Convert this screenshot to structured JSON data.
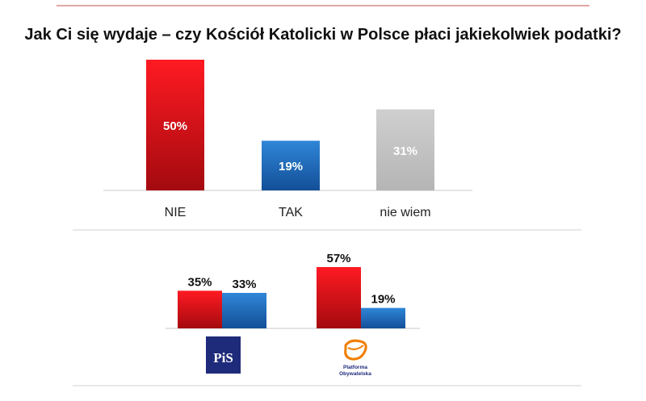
{
  "chart_data": [
    {
      "type": "bar",
      "title": "Jak Ci się wydaje – czy Kościół Katolicki w Polsce płaci jakiekolwiek podatki?",
      "categories": [
        "NIE",
        "TAK",
        "nie wiem"
      ],
      "values": [
        50,
        19,
        31
      ],
      "value_labels": [
        "50%",
        "19%",
        "31%"
      ],
      "colors": [
        "#e0141a",
        "#1f6bbf",
        "#bdbdbd"
      ],
      "ylim": [
        0,
        50
      ],
      "grid": false,
      "legend": "none"
    },
    {
      "type": "bar",
      "categories": [
        "PiS",
        "Platforma Obywatelska"
      ],
      "series": [
        {
          "name": "NIE",
          "color": "#e0141a",
          "values": [
            35,
            57
          ],
          "value_labels": [
            "35%",
            "57%"
          ]
        },
        {
          "name": "TAK",
          "color": "#1f6bbf",
          "values": [
            33,
            19
          ],
          "value_labels": [
            "33%",
            "19%"
          ]
        }
      ],
      "ylim": [
        0,
        57
      ],
      "grid": false,
      "legend": "none"
    }
  ],
  "logos": {
    "pis": {
      "text": "PiS",
      "color": "#1e2a7a"
    },
    "po": {
      "line1": "Platforma",
      "line2": "Obywatelska",
      "color": "#f07d00",
      "text_color": "#1e2a7a"
    }
  },
  "colors": {
    "rule": "#c0504d",
    "divider": "#d0d0d0",
    "text": "#222222"
  }
}
